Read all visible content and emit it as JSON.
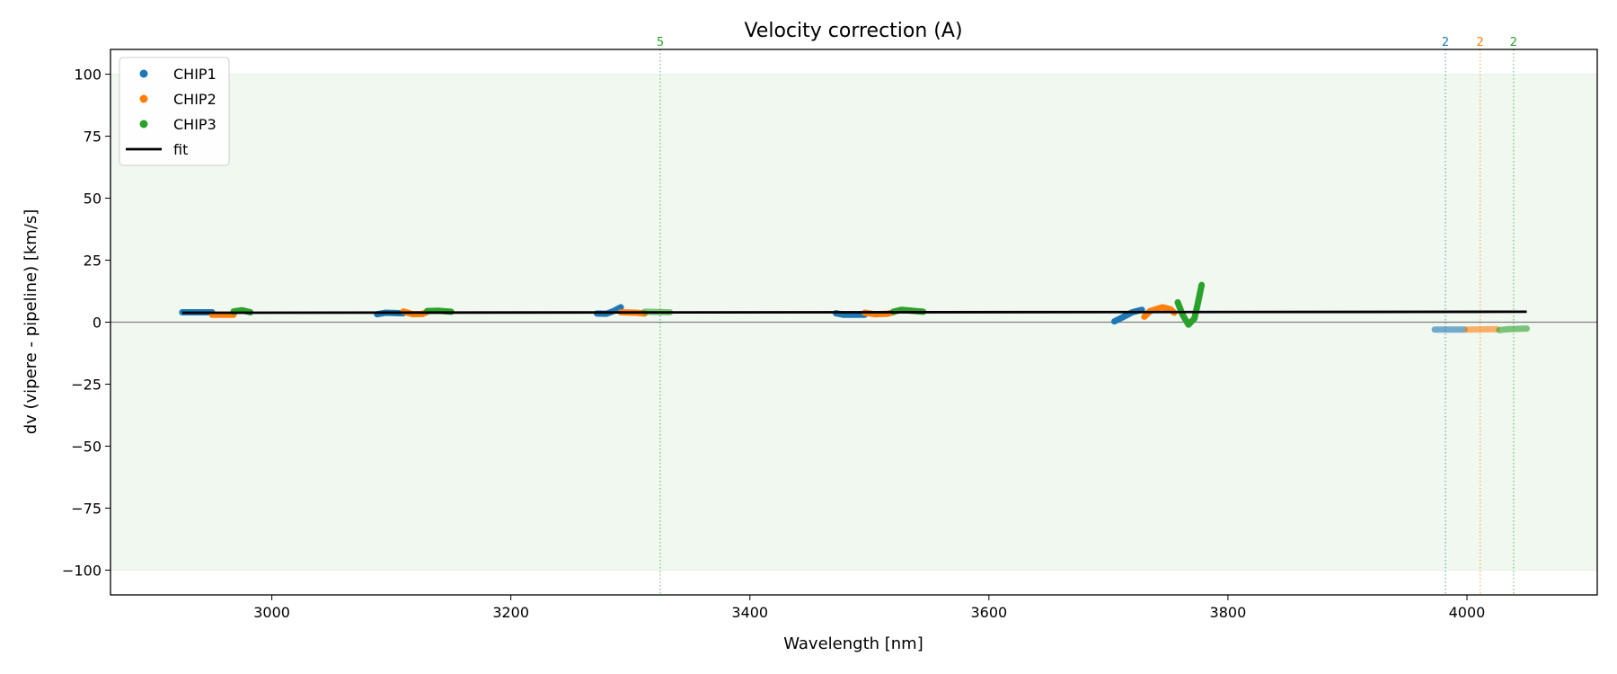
{
  "chart_data": {
    "type": "scatter",
    "title": "Velocity correction (A)",
    "xlabel": "Wavelength [nm]",
    "ylabel": "dv (vipere - pipeline) [km/s]",
    "xlim": [
      2865,
      4109
    ],
    "ylim": [
      -110,
      110
    ],
    "xticks": [
      3000,
      3200,
      3400,
      3600,
      3800,
      4000
    ],
    "yticks": [
      -100,
      -75,
      -50,
      -25,
      0,
      25,
      50,
      75,
      100
    ],
    "ytick_labels": [
      "−100",
      "−75",
      "−50",
      "−25",
      "0",
      "25",
      "50",
      "75",
      "100"
    ],
    "grid": false,
    "legend_position": "upper-left",
    "band": {
      "ymin": -100,
      "ymax": 100,
      "color": "#2ca02c"
    },
    "zero_line": 0,
    "series": [
      {
        "name": "CHIP1",
        "color": "#1f77b4",
        "segments": [
          [
            [
              2925,
              4
            ],
            [
              2950,
              4
            ]
          ],
          [
            [
              3088,
              3.2
            ],
            [
              3095,
              3.8
            ],
            [
              3110,
              3.6
            ]
          ],
          [
            [
              3272,
              3.5
            ],
            [
              3280,
              3.4
            ],
            [
              3286,
              4.5
            ],
            [
              3292,
              6
            ]
          ],
          [
            [
              3472,
              3.6
            ],
            [
              3478,
              3
            ],
            [
              3496,
              3
            ]
          ],
          [
            [
              3705,
              0.3
            ],
            [
              3712,
              2
            ],
            [
              3720,
              4
            ],
            [
              3728,
              5
            ]
          ],
          {
            "faded": true,
            "points": [
              [
                3973,
                -3
              ],
              [
                3998,
                -3
              ]
            ]
          }
        ]
      },
      {
        "name": "CHIP2",
        "color": "#ff7f0e",
        "segments": [
          [
            [
              2950,
              3
            ],
            [
              2968,
              3
            ]
          ],
          [
            [
              3110,
              4.3
            ],
            [
              3118,
              3.2
            ],
            [
              3126,
              3.3
            ],
            [
              3130,
              4.2
            ]
          ],
          [
            [
              3292,
              4
            ],
            [
              3305,
              3.8
            ],
            [
              3312,
              3.5
            ]
          ],
          [
            [
              3496,
              3.8
            ],
            [
              3505,
              3.2
            ],
            [
              3515,
              3.4
            ],
            [
              3520,
              4
            ]
          ],
          [
            [
              3730,
              2.2
            ],
            [
              3735,
              4.5
            ],
            [
              3745,
              6
            ],
            [
              3752,
              5.2
            ],
            [
              3755,
              3.8
            ]
          ],
          {
            "faded": true,
            "points": [
              [
                4000,
                -3
              ],
              [
                4025,
                -2.8
              ]
            ]
          }
        ]
      },
      {
        "name": "CHIP3",
        "color": "#2ca02c",
        "segments": [
          [
            [
              2968,
              4.3
            ],
            [
              2975,
              4.8
            ],
            [
              2982,
              4
            ]
          ],
          [
            [
              3130,
              4.5
            ],
            [
              3140,
              4.6
            ],
            [
              3150,
              4.2
            ]
          ],
          {
            "faded": true,
            "points": [
              [
                3312,
                4.2
              ],
              [
                3333,
                4
              ]
            ]
          },
          [
            [
              3520,
              4.2
            ],
            [
              3527,
              5
            ],
            [
              3545,
              4.2
            ]
          ],
          [
            [
              3758,
              8
            ],
            [
              3762,
              3
            ],
            [
              3767,
              -1
            ],
            [
              3772,
              1.5
            ],
            [
              3775,
              8
            ],
            [
              3778,
              15
            ]
          ],
          {
            "faded": true,
            "points": [
              [
                4027,
                -3.2
              ],
              [
                4035,
                -2.8
              ],
              [
                4050,
                -2.6
              ]
            ]
          }
        ]
      }
    ],
    "fit": {
      "name": "fit",
      "color": "#000000",
      "points": [
        [
          2925,
          3.8
        ],
        [
          4050,
          4.2
        ]
      ]
    },
    "markers": [
      {
        "x": 3325,
        "label": "5",
        "color": "#2ca02c"
      },
      {
        "x": 3982,
        "label": "2",
        "color": "#1f77b4"
      },
      {
        "x": 4011,
        "label": "2",
        "color": "#ff7f0e"
      },
      {
        "x": 4039,
        "label": "2",
        "color": "#2ca02c"
      }
    ]
  }
}
